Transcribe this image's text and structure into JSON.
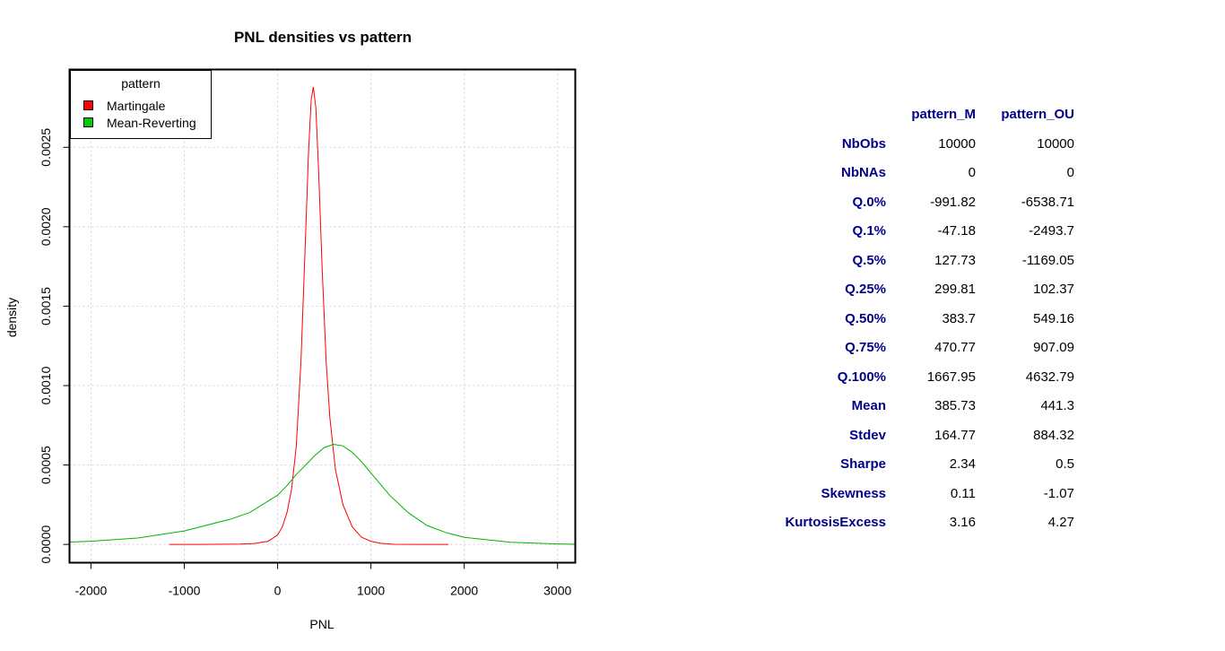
{
  "chart_data": {
    "type": "line",
    "title": "PNL densities vs pattern",
    "xlabel": "PNL",
    "ylabel": "density",
    "xlim": [
      -2230,
      3190
    ],
    "ylim": [
      -0.000115,
      0.00299
    ],
    "x_ticks": [
      -2000,
      -1000,
      0,
      1000,
      2000,
      3000
    ],
    "x_tick_labels": [
      "-2000",
      "-1000",
      "0",
      "1000",
      "2000",
      "3000"
    ],
    "y_ticks": [
      0,
      0.0005,
      0.001,
      0.0015,
      0.002,
      0.0025
    ],
    "y_tick_labels": [
      "0.0000",
      "0.0005",
      "0.0010",
      "0.0015",
      "0.0020",
      "0.0025"
    ],
    "grid": true,
    "legend": {
      "title": "pattern",
      "position": "top-left",
      "entries": [
        "Martingale",
        "Mean-Reverting"
      ]
    },
    "series": [
      {
        "name": "Martingale",
        "color": "#ff0000",
        "x": [
          -1160,
          -800,
          -400,
          -250,
          -100,
          0,
          50,
          100,
          150,
          200,
          250,
          300,
          330,
          360,
          383,
          410,
          440,
          480,
          520,
          560,
          620,
          700,
          800,
          900,
          1000,
          1100,
          1250,
          1500,
          1830
        ],
        "y": [
          0,
          0,
          2e-06,
          6e-06,
          2e-05,
          6e-05,
          0.00011,
          0.0002,
          0.00035,
          0.00062,
          0.00115,
          0.00195,
          0.00245,
          0.0028,
          0.00288,
          0.00275,
          0.00235,
          0.0017,
          0.00115,
          0.0008,
          0.00047,
          0.00025,
          0.00011,
          4.5e-05,
          2e-05,
          7e-06,
          1e-06,
          0,
          0
        ]
      },
      {
        "name": "Mean-Reverting",
        "color": "#00b400",
        "x": [
          -2230,
          -2000,
          -1500,
          -1000,
          -500,
          -300,
          0,
          100,
          200,
          300,
          400,
          500,
          600,
          700,
          800,
          900,
          1000,
          1100,
          1200,
          1400,
          1600,
          1800,
          2000,
          2500,
          3000,
          3190
        ],
        "y": [
          1.5e-05,
          2e-05,
          4e-05,
          8.5e-05,
          0.00016,
          0.0002,
          0.00031,
          0.00037,
          0.00044,
          0.0005,
          0.00056,
          0.00061,
          0.00063,
          0.00062,
          0.00058,
          0.00052,
          0.00045,
          0.00038,
          0.00031,
          0.0002,
          0.00012,
          7.5e-05,
          4.5e-05,
          1.3e-05,
          3e-06,
          1e-06
        ]
      }
    ]
  },
  "stats_table": {
    "columns": [
      "pattern_M",
      "pattern_OU"
    ],
    "rows": [
      {
        "label": "NbObs",
        "values": [
          "10000",
          "10000"
        ]
      },
      {
        "label": "NbNAs",
        "values": [
          "0",
          "0"
        ]
      },
      {
        "label": "Q.0%",
        "values": [
          "-991.82",
          "-6538.71"
        ]
      },
      {
        "label": "Q.1%",
        "values": [
          "-47.18",
          "-2493.7"
        ]
      },
      {
        "label": "Q.5%",
        "values": [
          "127.73",
          "-1169.05"
        ]
      },
      {
        "label": "Q.25%",
        "values": [
          "299.81",
          "102.37"
        ]
      },
      {
        "label": "Q.50%",
        "values": [
          "383.7",
          "549.16"
        ]
      },
      {
        "label": "Q.75%",
        "values": [
          "470.77",
          "907.09"
        ]
      },
      {
        "label": "Q.100%",
        "values": [
          "1667.95",
          "4632.79"
        ]
      },
      {
        "label": "Mean",
        "values": [
          "385.73",
          "441.3"
        ]
      },
      {
        "label": "Stdev",
        "values": [
          "164.77",
          "884.32"
        ]
      },
      {
        "label": "Sharpe",
        "values": [
          "2.34",
          "0.5"
        ]
      },
      {
        "label": "Skewness",
        "values": [
          "0.11",
          "-1.07"
        ]
      },
      {
        "label": "KurtosisExcess",
        "values": [
          "3.16",
          "4.27"
        ]
      }
    ]
  }
}
